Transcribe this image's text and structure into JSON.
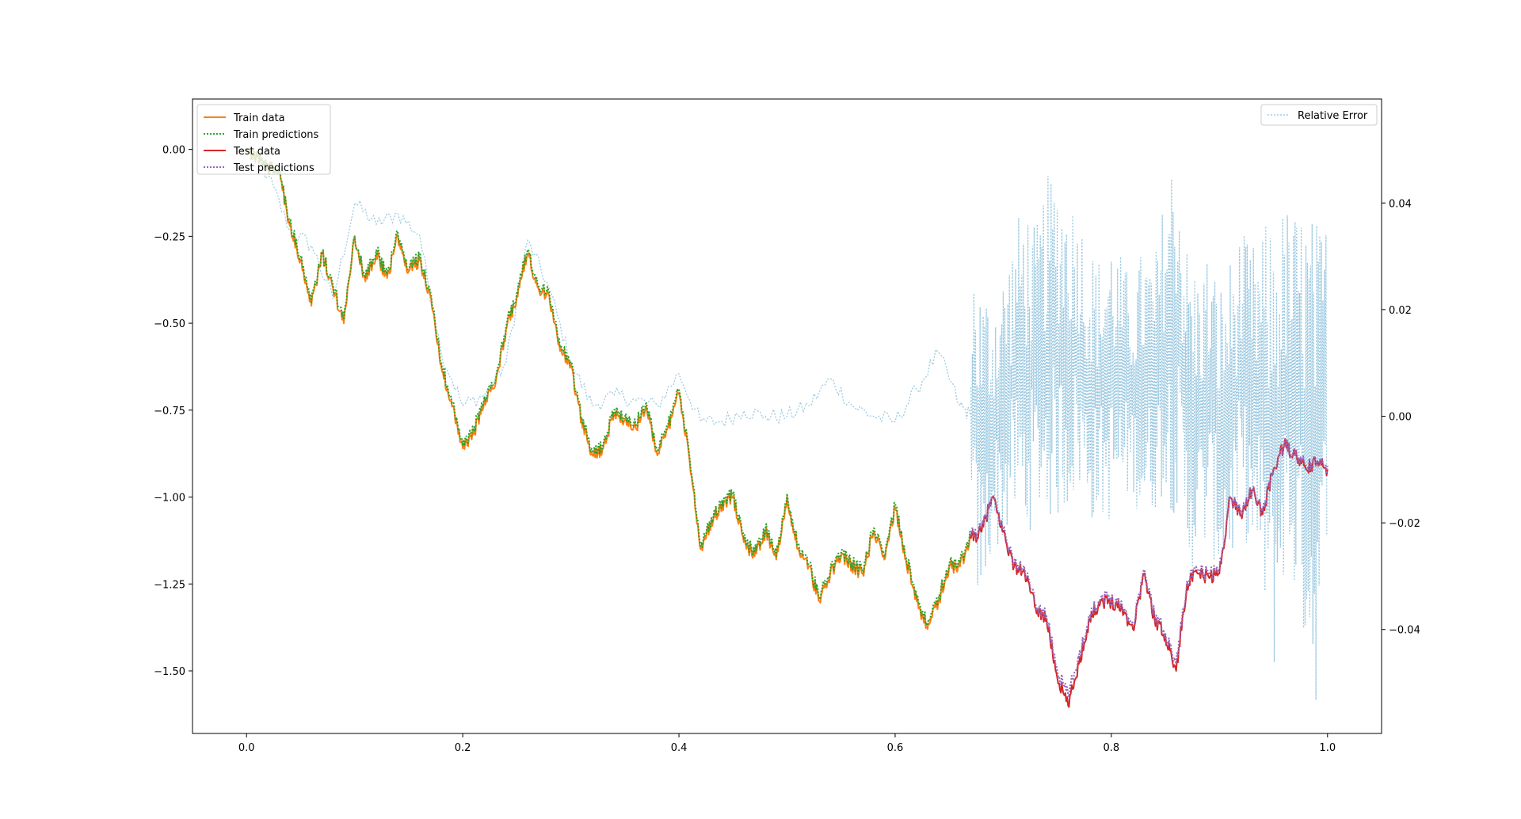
{
  "chart_data": {
    "type": "line",
    "title": "",
    "xlabel": "",
    "ylabel": "",
    "xlim": [
      -0.05,
      1.05
    ],
    "ylim_left": [
      -1.68,
      0.145
    ],
    "ylim_right": [
      -0.0595,
      0.0595
    ],
    "x_ticks": [
      0.0,
      0.2,
      0.4,
      0.6,
      0.8,
      1.0
    ],
    "x_tick_labels": [
      "0.0",
      "0.2",
      "0.4",
      "0.6",
      "0.8",
      "1.0"
    ],
    "y_left_ticks": [
      0.0,
      -0.25,
      -0.5,
      -0.75,
      -1.0,
      -1.25,
      -1.5
    ],
    "y_left_tick_labels": [
      "0.00",
      "−0.25",
      "−0.50",
      "−0.75",
      "−1.00",
      "−1.25",
      "−1.50"
    ],
    "y_right_ticks": [
      0.04,
      0.02,
      0.0,
      -0.02,
      -0.04
    ],
    "y_right_tick_labels": [
      "0.04",
      "0.02",
      "0.00",
      "−0.02",
      "−0.04"
    ],
    "legend_left": [
      "Train data",
      "Train predictions",
      "Test data",
      "Test predictions"
    ],
    "legend_right": [
      "Relative Error"
    ],
    "legend_left_loc": "upper-left",
    "legend_right_loc": "upper-right",
    "colors": {
      "train_data": "#ff7f0e",
      "train_pred": "#2ca02c",
      "test_data": "#d62728",
      "test_pred": "#9467bd",
      "rel_error": "#9ecae1"
    },
    "train_split": 0.67,
    "series": [
      {
        "name": "Train data",
        "axis": "left",
        "x": [
          0.0,
          0.01,
          0.02,
          0.03,
          0.04,
          0.05,
          0.06,
          0.07,
          0.08,
          0.09,
          0.1,
          0.11,
          0.12,
          0.13,
          0.14,
          0.15,
          0.16,
          0.17,
          0.18,
          0.19,
          0.2,
          0.21,
          0.22,
          0.23,
          0.24,
          0.25,
          0.26,
          0.27,
          0.28,
          0.29,
          0.3,
          0.31,
          0.32,
          0.33,
          0.34,
          0.35,
          0.36,
          0.37,
          0.38,
          0.39,
          0.4,
          0.41,
          0.42,
          0.43,
          0.44,
          0.45,
          0.46,
          0.47,
          0.48,
          0.49,
          0.5,
          0.51,
          0.52,
          0.53,
          0.54,
          0.55,
          0.56,
          0.57,
          0.58,
          0.59,
          0.6,
          0.61,
          0.62,
          0.63,
          0.64,
          0.65,
          0.66,
          0.67
        ],
        "values": [
          0.0,
          -0.02,
          -0.05,
          -0.06,
          -0.22,
          -0.32,
          -0.45,
          -0.3,
          -0.4,
          -0.5,
          -0.25,
          -0.38,
          -0.3,
          -0.37,
          -0.25,
          -0.35,
          -0.32,
          -0.42,
          -0.62,
          -0.74,
          -0.86,
          -0.82,
          -0.72,
          -0.68,
          -0.52,
          -0.42,
          -0.3,
          -0.4,
          -0.42,
          -0.58,
          -0.62,
          -0.78,
          -0.88,
          -0.86,
          -0.76,
          -0.78,
          -0.8,
          -0.74,
          -0.88,
          -0.8,
          -0.7,
          -0.9,
          -1.15,
          -1.07,
          -1.02,
          -1.0,
          -1.13,
          -1.17,
          -1.1,
          -1.18,
          -1.0,
          -1.15,
          -1.2,
          -1.3,
          -1.22,
          -1.17,
          -1.2,
          -1.22,
          -1.1,
          -1.18,
          -1.03,
          -1.18,
          -1.3,
          -1.38,
          -1.3,
          -1.2,
          -1.2,
          -1.12
        ]
      },
      {
        "name": "Train predictions",
        "axis": "left",
        "x": [
          0.0,
          0.01,
          0.02,
          0.03,
          0.04,
          0.05,
          0.06,
          0.07,
          0.08,
          0.09,
          0.1,
          0.11,
          0.12,
          0.13,
          0.14,
          0.15,
          0.16,
          0.17,
          0.18,
          0.19,
          0.2,
          0.21,
          0.22,
          0.23,
          0.24,
          0.25,
          0.26,
          0.27,
          0.28,
          0.29,
          0.3,
          0.31,
          0.32,
          0.33,
          0.34,
          0.35,
          0.36,
          0.37,
          0.38,
          0.39,
          0.4,
          0.41,
          0.42,
          0.43,
          0.44,
          0.45,
          0.46,
          0.47,
          0.48,
          0.49,
          0.5,
          0.51,
          0.52,
          0.53,
          0.54,
          0.55,
          0.56,
          0.57,
          0.58,
          0.59,
          0.6,
          0.61,
          0.62,
          0.63,
          0.64,
          0.65,
          0.66,
          0.67
        ],
        "values": [
          0.0,
          -0.02,
          -0.05,
          -0.06,
          -0.21,
          -0.31,
          -0.44,
          -0.3,
          -0.39,
          -0.49,
          -0.25,
          -0.37,
          -0.29,
          -0.36,
          -0.24,
          -0.34,
          -0.31,
          -0.41,
          -0.61,
          -0.73,
          -0.85,
          -0.81,
          -0.71,
          -0.67,
          -0.51,
          -0.41,
          -0.29,
          -0.39,
          -0.41,
          -0.57,
          -0.61,
          -0.77,
          -0.87,
          -0.85,
          -0.75,
          -0.77,
          -0.79,
          -0.73,
          -0.87,
          -0.79,
          -0.69,
          -0.89,
          -1.14,
          -1.06,
          -1.01,
          -0.99,
          -1.12,
          -1.16,
          -1.09,
          -1.17,
          -0.99,
          -1.14,
          -1.19,
          -1.29,
          -1.21,
          -1.16,
          -1.19,
          -1.21,
          -1.09,
          -1.17,
          -1.02,
          -1.17,
          -1.29,
          -1.37,
          -1.29,
          -1.19,
          -1.19,
          -1.11
        ]
      },
      {
        "name": "Test data",
        "axis": "left",
        "x": [
          0.67,
          0.68,
          0.69,
          0.7,
          0.71,
          0.72,
          0.73,
          0.74,
          0.75,
          0.76,
          0.77,
          0.78,
          0.79,
          0.8,
          0.81,
          0.82,
          0.83,
          0.84,
          0.85,
          0.86,
          0.87,
          0.88,
          0.89,
          0.9,
          0.91,
          0.92,
          0.93,
          0.94,
          0.95,
          0.96,
          0.97,
          0.98,
          0.99,
          1.0
        ],
        "values": [
          -1.12,
          -1.1,
          -1.0,
          -1.1,
          -1.2,
          -1.22,
          -1.32,
          -1.35,
          -1.52,
          -1.6,
          -1.48,
          -1.35,
          -1.3,
          -1.3,
          -1.32,
          -1.38,
          -1.22,
          -1.35,
          -1.4,
          -1.5,
          -1.25,
          -1.22,
          -1.23,
          -1.22,
          -1.0,
          -1.05,
          -0.98,
          -1.05,
          -0.92,
          -0.85,
          -0.88,
          -0.92,
          -0.9,
          -0.92
        ]
      },
      {
        "name": "Test predictions",
        "axis": "left",
        "x": [
          0.67,
          0.68,
          0.69,
          0.7,
          0.71,
          0.72,
          0.73,
          0.74,
          0.75,
          0.76,
          0.77,
          0.78,
          0.79,
          0.8,
          0.81,
          0.82,
          0.83,
          0.84,
          0.85,
          0.86,
          0.87,
          0.88,
          0.89,
          0.9,
          0.91,
          0.92,
          0.93,
          0.94,
          0.95,
          0.96,
          0.97,
          0.98,
          0.99,
          1.0
        ],
        "values": [
          -1.11,
          -1.09,
          -1.0,
          -1.09,
          -1.19,
          -1.21,
          -1.31,
          -1.34,
          -1.5,
          -1.57,
          -1.46,
          -1.34,
          -1.29,
          -1.29,
          -1.31,
          -1.37,
          -1.21,
          -1.34,
          -1.39,
          -1.48,
          -1.24,
          -1.21,
          -1.22,
          -1.21,
          -1.0,
          -1.04,
          -0.98,
          -1.04,
          -0.92,
          -0.85,
          -0.88,
          -0.91,
          -0.9,
          -0.91
        ]
      },
      {
        "name": "Relative Error",
        "axis": "right",
        "x": [
          0.0,
          0.02,
          0.04,
          0.06,
          0.08,
          0.1,
          0.12,
          0.14,
          0.16,
          0.18,
          0.2,
          0.22,
          0.24,
          0.26,
          0.28,
          0.3,
          0.32,
          0.34,
          0.36,
          0.38,
          0.4,
          0.42,
          0.44,
          0.46,
          0.48,
          0.5,
          0.52,
          0.54,
          0.56,
          0.58,
          0.6,
          0.62,
          0.64,
          0.66,
          0.67
        ],
        "values": [
          0.05,
          0.045,
          0.035,
          0.032,
          0.022,
          0.04,
          0.036,
          0.038,
          0.034,
          0.012,
          0.002,
          0.004,
          0.01,
          0.033,
          0.024,
          0.01,
          0.002,
          0.004,
          0.003,
          0.002,
          0.008,
          -0.001,
          -0.001,
          0.001,
          0.0,
          0.0,
          0.002,
          0.007,
          0.002,
          0.0,
          -0.001,
          0.005,
          0.012,
          0.002,
          0.0
        ]
      }
    ],
    "error_band": {
      "name": "Relative Error (test region)",
      "x": [
        0.67,
        0.68,
        0.69,
        0.7,
        0.71,
        0.72,
        0.73,
        0.74,
        0.75,
        0.76,
        0.77,
        0.78,
        0.79,
        0.8,
        0.81,
        0.82,
        0.83,
        0.84,
        0.85,
        0.86,
        0.87,
        0.88,
        0.89,
        0.9,
        0.91,
        0.92,
        0.93,
        0.94,
        0.95,
        0.96,
        0.97,
        0.98,
        0.99,
        1.0
      ],
      "upper": [
        0.033,
        0.025,
        0.024,
        0.028,
        0.035,
        0.042,
        0.035,
        0.045,
        0.047,
        0.043,
        0.04,
        0.032,
        0.03,
        0.035,
        0.03,
        0.025,
        0.033,
        0.03,
        0.043,
        0.054,
        0.033,
        0.028,
        0.032,
        0.025,
        0.03,
        0.035,
        0.032,
        0.036,
        0.037,
        0.04,
        0.039,
        0.04,
        0.037,
        0.037
      ],
      "lower": [
        -0.03,
        -0.038,
        -0.025,
        -0.025,
        -0.02,
        -0.025,
        -0.018,
        -0.02,
        -0.02,
        -0.018,
        -0.015,
        -0.02,
        -0.02,
        -0.02,
        -0.018,
        -0.015,
        -0.022,
        -0.018,
        -0.015,
        -0.02,
        -0.03,
        -0.028,
        -0.025,
        -0.03,
        -0.03,
        -0.02,
        -0.028,
        -0.035,
        -0.05,
        -0.03,
        -0.035,
        -0.045,
        -0.055,
        -0.02
      ]
    }
  }
}
